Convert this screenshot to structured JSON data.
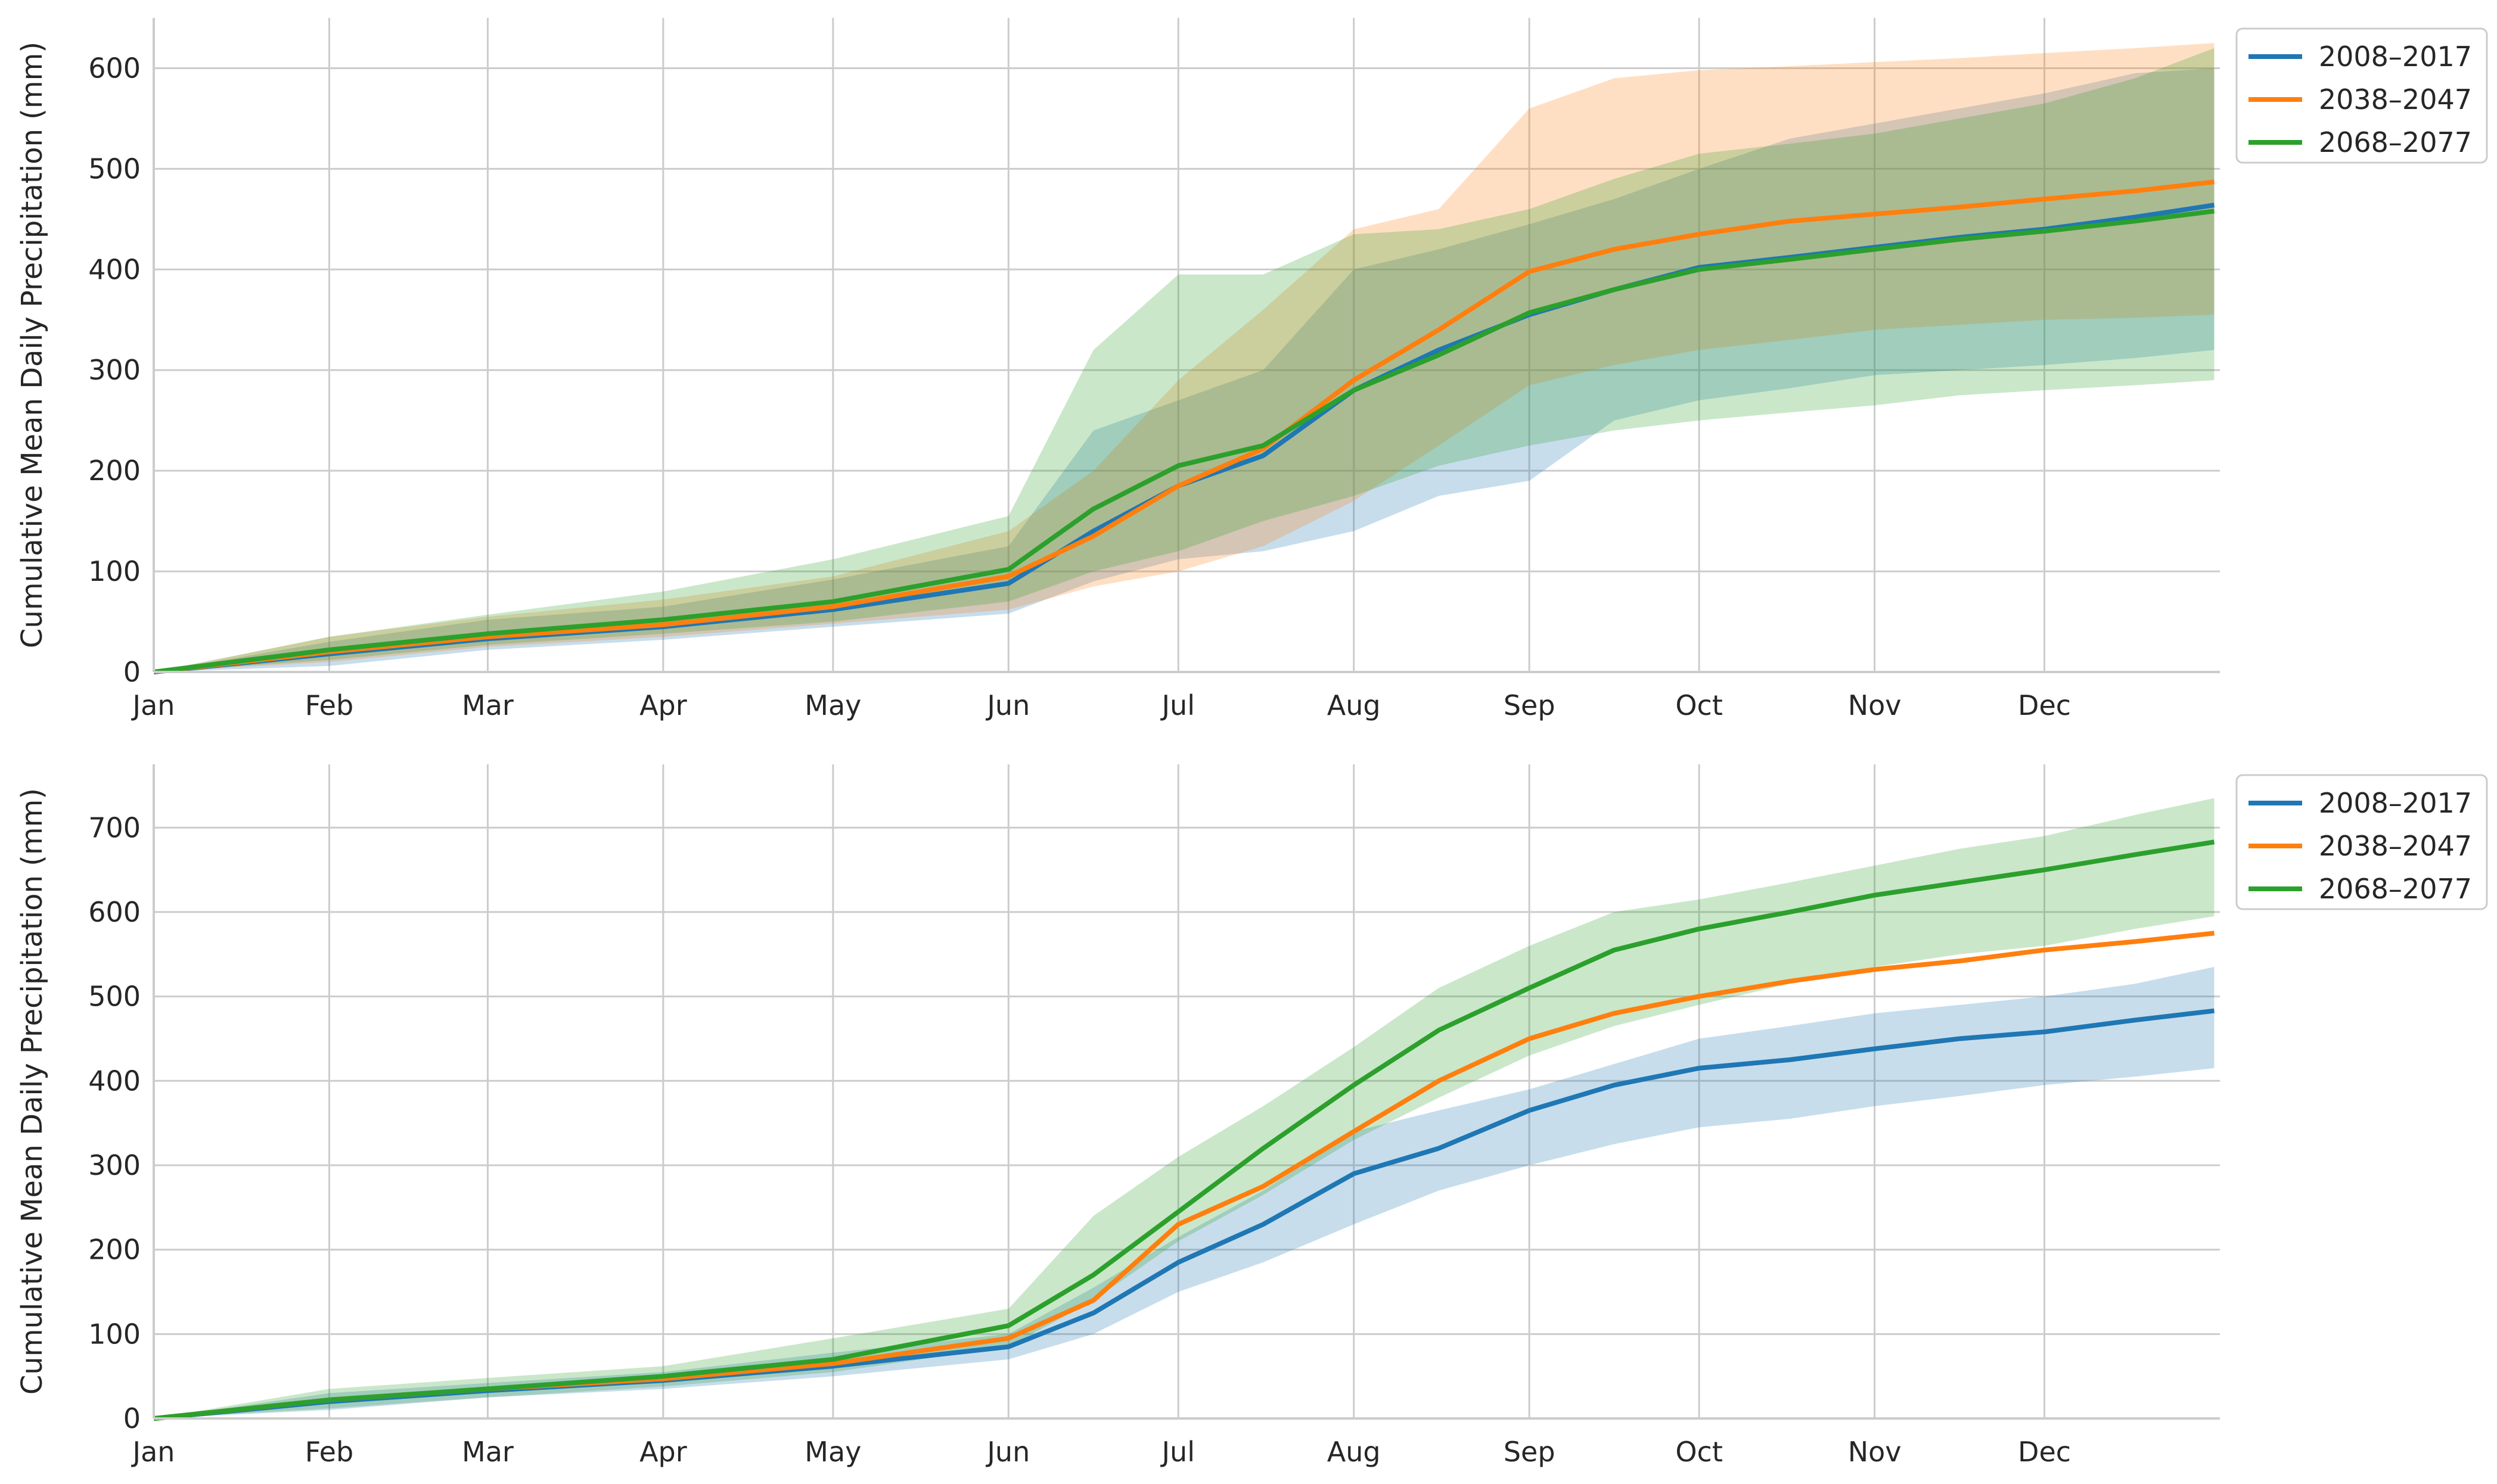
{
  "figure": {
    "months": [
      "Jan",
      "Feb",
      "Mar",
      "Apr",
      "May",
      "Jun",
      "Jul",
      "Aug",
      "Sep",
      "Oct",
      "Nov",
      "Dec"
    ],
    "month_start_days": [
      0,
      31,
      59,
      90,
      120,
      151,
      181,
      212,
      243,
      273,
      304,
      334
    ],
    "colors": {
      "2008–2017": "#1f77b4",
      "2038–2047": "#ff7f0e",
      "2068–2077": "#2ca02c"
    }
  },
  "chart_data": [
    {
      "type": "line",
      "ylabel": "Cumulative Mean Daily Precipitation (mm)",
      "xlabel": "",
      "xlim": [
        0,
        365
      ],
      "ylim": [
        0,
        650
      ],
      "yticks": [
        0,
        100,
        200,
        300,
        400,
        500,
        600
      ],
      "grid": true,
      "legend": {
        "placement": "outside-top-right",
        "entries": [
          "2008–2017",
          "2038–2047",
          "2068–2077"
        ]
      },
      "x": [
        0,
        31,
        59,
        90,
        120,
        151,
        166,
        181,
        196,
        212,
        227,
        243,
        258,
        273,
        289,
        304,
        319,
        334,
        350,
        364
      ],
      "series": [
        {
          "name": "2008–2017",
          "values": [
            0,
            18,
            33,
            45,
            62,
            88,
            140,
            185,
            215,
            280,
            320,
            355,
            380,
            402,
            412,
            422,
            432,
            440,
            452,
            464
          ],
          "lower": [
            0,
            6,
            22,
            32,
            45,
            58,
            90,
            112,
            120,
            140,
            175,
            190,
            250,
            270,
            282,
            295,
            300,
            305,
            312,
            320
          ],
          "upper": [
            0,
            30,
            52,
            65,
            92,
            125,
            240,
            270,
            300,
            400,
            420,
            445,
            470,
            500,
            530,
            545,
            560,
            575,
            595,
            600
          ]
        },
        {
          "name": "2038–2047",
          "values": [
            0,
            20,
            35,
            47,
            65,
            95,
            135,
            185,
            222,
            290,
            340,
            398,
            420,
            435,
            448,
            455,
            462,
            470,
            478,
            487
          ],
          "lower": [
            0,
            10,
            25,
            35,
            48,
            62,
            85,
            100,
            125,
            170,
            225,
            285,
            305,
            320,
            330,
            340,
            345,
            350,
            352,
            355
          ],
          "upper": [
            0,
            35,
            55,
            72,
            95,
            140,
            200,
            290,
            360,
            440,
            460,
            560,
            590,
            598,
            602,
            606,
            610,
            615,
            620,
            625
          ]
        },
        {
          "name": "2068–2077",
          "values": [
            0,
            22,
            38,
            52,
            70,
            102,
            162,
            205,
            225,
            280,
            315,
            357,
            380,
            400,
            410,
            420,
            430,
            438,
            448,
            458
          ],
          "lower": [
            0,
            12,
            27,
            38,
            50,
            70,
            100,
            120,
            150,
            175,
            205,
            225,
            240,
            250,
            258,
            265,
            275,
            280,
            285,
            290
          ],
          "upper": [
            0,
            35,
            57,
            80,
            112,
            155,
            320,
            395,
            395,
            435,
            440,
            460,
            490,
            515,
            525,
            535,
            550,
            565,
            590,
            620
          ]
        }
      ]
    },
    {
      "type": "line",
      "ylabel": "Cumulative Mean Daily Precipitation (mm)",
      "xlabel": "",
      "xlim": [
        0,
        365
      ],
      "ylim": [
        0,
        775
      ],
      "yticks": [
        0,
        100,
        200,
        300,
        400,
        500,
        600,
        700
      ],
      "grid": true,
      "legend": {
        "placement": "outside-top-right",
        "entries": [
          "2008–2017",
          "2038–2047",
          "2068–2077"
        ]
      },
      "x": [
        0,
        31,
        59,
        90,
        120,
        151,
        166,
        181,
        196,
        212,
        227,
        243,
        258,
        273,
        289,
        304,
        319,
        334,
        350,
        364
      ],
      "series": [
        {
          "name": "2008–2017",
          "values": [
            0,
            20,
            33,
            45,
            62,
            85,
            125,
            185,
            230,
            290,
            320,
            365,
            395,
            415,
            425,
            438,
            450,
            458,
            472,
            483
          ],
          "lower": [
            0,
            10,
            25,
            35,
            50,
            70,
            100,
            150,
            185,
            230,
            270,
            300,
            325,
            345,
            355,
            370,
            382,
            395,
            405,
            415
          ],
          "upper": [
            0,
            30,
            42,
            55,
            78,
            100,
            155,
            215,
            270,
            340,
            365,
            390,
            420,
            450,
            465,
            480,
            490,
            500,
            515,
            535
          ]
        },
        {
          "name": "2038–2047",
          "values": [
            0,
            22,
            35,
            47,
            65,
            95,
            140,
            230,
            275,
            340,
            400,
            450,
            480,
            500,
            518,
            532,
            542,
            555,
            565,
            575
          ]
        },
        {
          "name": "2068–2077",
          "values": [
            0,
            22,
            35,
            50,
            70,
            110,
            170,
            245,
            320,
            395,
            460,
            510,
            555,
            580,
            600,
            620,
            635,
            650,
            668,
            683
          ],
          "lower": [
            0,
            12,
            25,
            38,
            55,
            85,
            140,
            210,
            265,
            330,
            380,
            430,
            465,
            490,
            515,
            535,
            550,
            560,
            580,
            595
          ],
          "upper": [
            0,
            35,
            48,
            62,
            95,
            130,
            240,
            310,
            370,
            440,
            510,
            560,
            600,
            615,
            635,
            655,
            675,
            690,
            715,
            735
          ]
        }
      ]
    }
  ]
}
